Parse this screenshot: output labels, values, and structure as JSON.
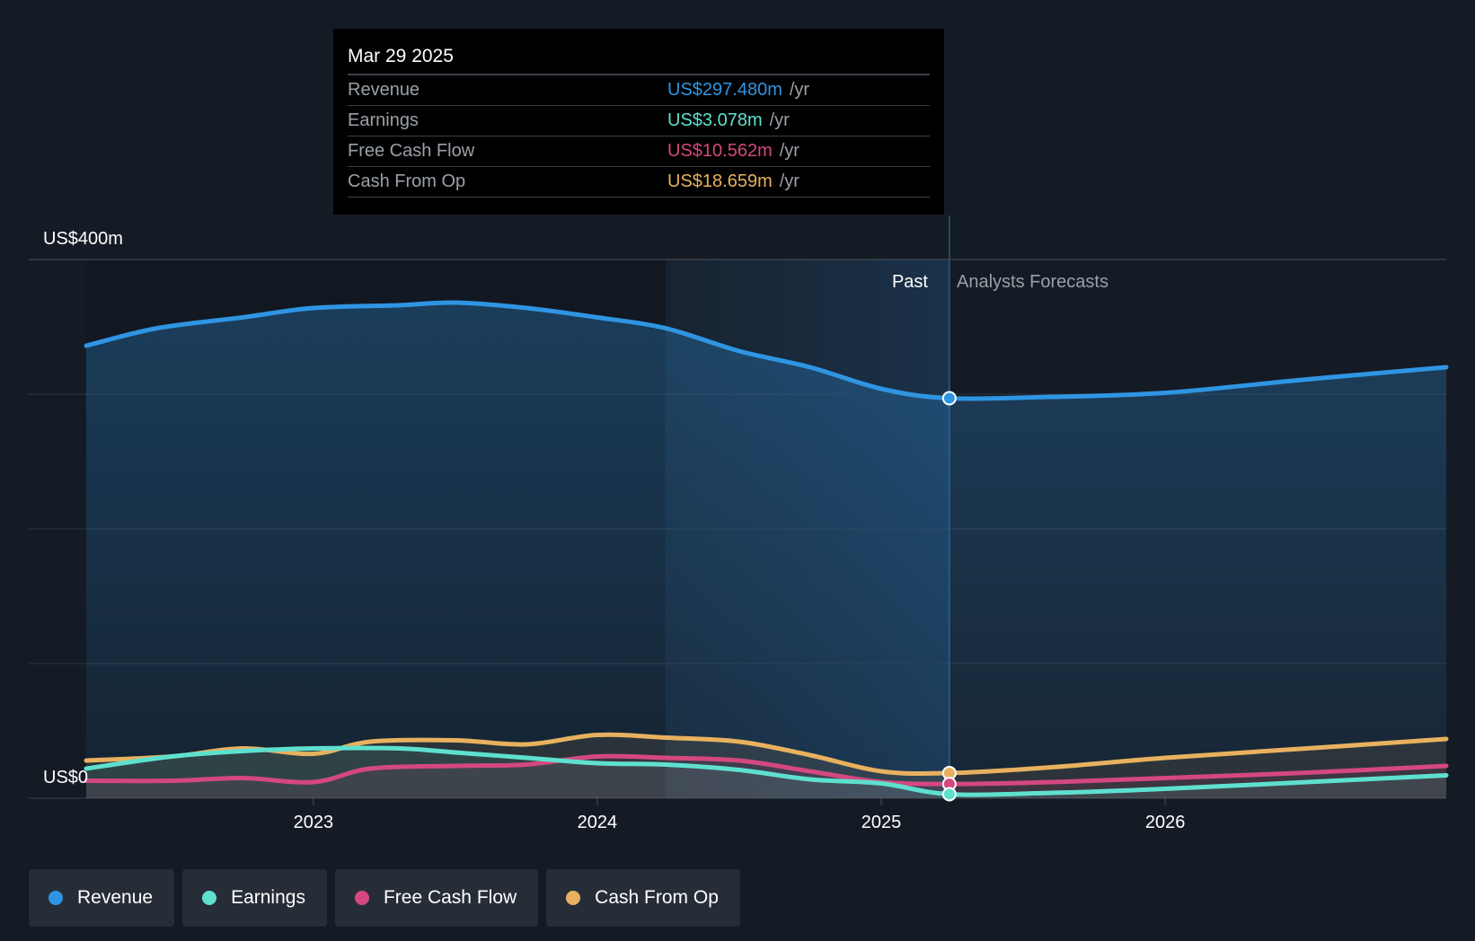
{
  "colors": {
    "revenue": "#2f95e3",
    "earnings": "#5ee0cf",
    "fcf": "#d4487f",
    "cfo": "#e8b15f",
    "background": "#151b24",
    "past_shade": "#1b2a3a"
  },
  "tooltip": {
    "date": "Mar 29 2025",
    "rows": [
      {
        "label": "Revenue",
        "value": "US$297.480m",
        "unit": "/yr",
        "color": "#2f95e3"
      },
      {
        "label": "Earnings",
        "value": "US$3.078m",
        "unit": "/yr",
        "color": "#5ee0cf"
      },
      {
        "label": "Free Cash Flow",
        "value": "US$10.562m",
        "unit": "/yr",
        "color": "#d4487f"
      },
      {
        "label": "Cash From Op",
        "value": "US$18.659m",
        "unit": "/yr",
        "color": "#e8b15f"
      }
    ]
  },
  "legend": [
    {
      "label": "Revenue",
      "color": "#2f95e3"
    },
    {
      "label": "Earnings",
      "color": "#5ee0cf"
    },
    {
      "label": "Free Cash Flow",
      "color": "#d4487f"
    },
    {
      "label": "Cash From Op",
      "color": "#e8b15f"
    }
  ],
  "chart_data": {
    "type": "area",
    "title": "",
    "ylabel": "US$",
    "y_tick_labels": {
      "top": "US$400m",
      "bottom": "US$0"
    },
    "ylim": [
      0,
      400
    ],
    "xlim": [
      2022.2,
      2026.99
    ],
    "x_ticks": [
      2023,
      2024,
      2025,
      2026
    ],
    "x_tick_labels": [
      "2023",
      "2024",
      "2025",
      "2026"
    ],
    "past_label": "Past",
    "forecast_label": "Analysts Forecasts",
    "divider_x": 2025.24,
    "highlight_start_x": 2024.24,
    "series": [
      {
        "name": "Revenue",
        "key": "revenue",
        "x": [
          2022.2,
          2022.45,
          2022.75,
          2023.0,
          2023.3,
          2023.5,
          2023.75,
          2024.0,
          2024.24,
          2024.5,
          2024.75,
          2025.0,
          2025.24,
          2025.6,
          2026.0,
          2026.5,
          2026.99
        ],
        "y": [
          336,
          349,
          357,
          364,
          366,
          368,
          364,
          357,
          349,
          332,
          320,
          304,
          297,
          298,
          301,
          311,
          320
        ]
      },
      {
        "name": "Earnings",
        "key": "earnings",
        "x": [
          2022.2,
          2022.5,
          2022.75,
          2023.0,
          2023.3,
          2023.5,
          2023.75,
          2024.0,
          2024.24,
          2024.5,
          2024.75,
          2025.0,
          2025.24,
          2025.6,
          2026.0,
          2026.5,
          2026.99
        ],
        "y": [
          22,
          31,
          35,
          37,
          37,
          34,
          30,
          26,
          25,
          21,
          14,
          11,
          3,
          4,
          7,
          12,
          17
        ]
      },
      {
        "name": "Free Cash Flow",
        "key": "fcf",
        "x": [
          2022.2,
          2022.5,
          2022.75,
          2023.0,
          2023.2,
          2023.5,
          2023.75,
          2024.0,
          2024.24,
          2024.5,
          2024.75,
          2025.0,
          2025.24,
          2025.6,
          2026.0,
          2026.5,
          2026.99
        ],
        "y": [
          13,
          13,
          15,
          12,
          22,
          24,
          25,
          31,
          30,
          28,
          20,
          12,
          10.6,
          12,
          15,
          19,
          24
        ]
      },
      {
        "name": "Cash From Op",
        "key": "cfo",
        "x": [
          2022.2,
          2022.5,
          2022.75,
          2023.0,
          2023.2,
          2023.5,
          2023.75,
          2024.0,
          2024.24,
          2024.5,
          2024.75,
          2025.0,
          2025.24,
          2025.6,
          2026.0,
          2026.5,
          2026.99
        ],
        "y": [
          28,
          31,
          37,
          33,
          42,
          43,
          40,
          47,
          45,
          42,
          32,
          20,
          18.7,
          23,
          30,
          37,
          44
        ]
      }
    ],
    "markers_at_x": 2025.24
  }
}
